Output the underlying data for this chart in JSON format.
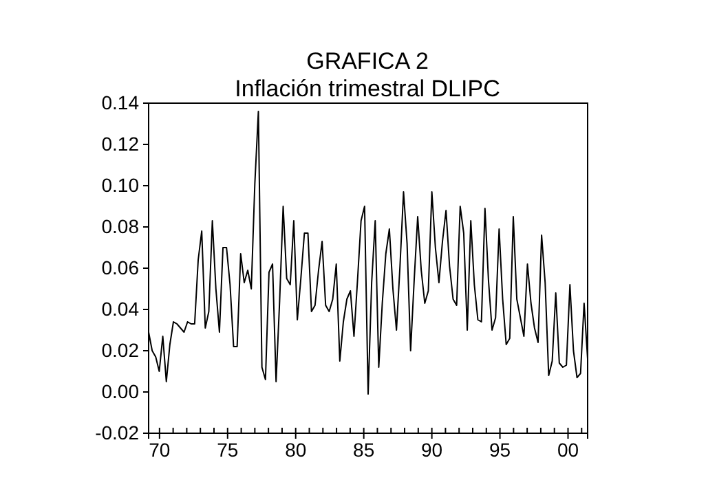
{
  "chart_data": {
    "type": "line",
    "title": "GRAFICA 2",
    "subtitle": "Inflación trimestral DLIPC",
    "x": [
      1969.2,
      1969.46,
      1969.72,
      1969.98,
      1970.24,
      1970.5,
      1970.76,
      1971.02,
      1971.28,
      1971.54,
      1971.8,
      1972.06,
      1972.32,
      1972.58,
      1972.84,
      1973.1,
      1973.36,
      1973.62,
      1973.88,
      1974.14,
      1974.4,
      1974.66,
      1974.92,
      1975.18,
      1975.44,
      1975.7,
      1975.96,
      1976.22,
      1976.48,
      1976.74,
      1977.0,
      1977.26,
      1977.52,
      1977.78,
      1978.04,
      1978.3,
      1978.56,
      1978.82,
      1979.08,
      1979.34,
      1979.6,
      1979.86,
      1980.12,
      1980.38,
      1980.64,
      1980.9,
      1981.16,
      1981.42,
      1981.68,
      1981.94,
      1982.2,
      1982.46,
      1982.72,
      1982.98,
      1983.24,
      1983.5,
      1983.76,
      1984.02,
      1984.28,
      1984.54,
      1984.8,
      1985.06,
      1985.32,
      1985.58,
      1985.84,
      1986.1,
      1986.36,
      1986.62,
      1986.88,
      1987.14,
      1987.4,
      1987.66,
      1987.92,
      1988.18,
      1988.44,
      1988.7,
      1988.96,
      1989.22,
      1989.48,
      1989.74,
      1990.0,
      1990.26,
      1990.52,
      1990.78,
      1991.04,
      1991.3,
      1991.56,
      1991.82,
      1992.08,
      1992.34,
      1992.6,
      1992.86,
      1993.12,
      1993.38,
      1993.64,
      1993.9,
      1994.16,
      1994.42,
      1994.68,
      1994.94,
      1995.2,
      1995.46,
      1995.72,
      1995.98,
      1996.24,
      1996.5,
      1996.76,
      1997.02,
      1997.28,
      1997.54,
      1997.8,
      1998.06,
      1998.32,
      1998.58,
      1998.84,
      1999.1,
      1999.36,
      1999.62,
      1999.88,
      2000.14,
      2000.4,
      2000.66,
      2000.92,
      2001.18,
      2001.44
    ],
    "series": [
      {
        "color": "#000000",
        "values": [
          0.029,
          0.02,
          0.017,
          0.01,
          0.027,
          0.005,
          0.023,
          0.034,
          0.033,
          0.031,
          0.029,
          0.034,
          0.033,
          0.033,
          0.064,
          0.078,
          0.031,
          0.039,
          0.083,
          0.05,
          0.029,
          0.07,
          0.07,
          0.052,
          0.022,
          0.022,
          0.067,
          0.053,
          0.059,
          0.05,
          0.101,
          0.136,
          0.012,
          0.006,
          0.058,
          0.062,
          0.005,
          0.044,
          0.09,
          0.055,
          0.052,
          0.083,
          0.035,
          0.055,
          0.077,
          0.077,
          0.039,
          0.042,
          0.059,
          0.073,
          0.042,
          0.039,
          0.045,
          0.062,
          0.015,
          0.034,
          0.045,
          0.049,
          0.027,
          0.054,
          0.083,
          0.09,
          -0.001,
          0.053,
          0.083,
          0.012,
          0.043,
          0.067,
          0.079,
          0.05,
          0.03,
          0.061,
          0.097,
          0.072,
          0.02,
          0.054,
          0.085,
          0.059,
          0.043,
          0.049,
          0.097,
          0.07,
          0.053,
          0.073,
          0.088,
          0.061,
          0.045,
          0.042,
          0.09,
          0.077,
          0.03,
          0.083,
          0.052,
          0.035,
          0.034,
          0.089,
          0.054,
          0.03,
          0.036,
          0.079,
          0.045,
          0.023,
          0.026,
          0.085,
          0.045,
          0.036,
          0.027,
          0.062,
          0.043,
          0.031,
          0.024,
          0.076,
          0.053,
          0.008,
          0.015,
          0.048,
          0.014,
          0.012,
          0.013,
          0.052,
          0.02,
          0.007,
          0.009,
          0.043,
          0.016
        ]
      }
    ],
    "xlim": [
      1969.2,
      2001.44
    ],
    "xticks": [
      {
        "value": 1970,
        "label": "70"
      },
      {
        "value": 1971,
        "label": null
      },
      {
        "value": 1972,
        "label": null
      },
      {
        "value": 1973,
        "label": null
      },
      {
        "value": 1974,
        "label": null
      },
      {
        "value": 1975,
        "label": "75"
      },
      {
        "value": 1976,
        "label": null
      },
      {
        "value": 1977,
        "label": null
      },
      {
        "value": 1978,
        "label": null
      },
      {
        "value": 1979,
        "label": null
      },
      {
        "value": 1980,
        "label": "80"
      },
      {
        "value": 1981,
        "label": null
      },
      {
        "value": 1982,
        "label": null
      },
      {
        "value": 1983,
        "label": null
      },
      {
        "value": 1984,
        "label": null
      },
      {
        "value": 1985,
        "label": "85"
      },
      {
        "value": 1986,
        "label": null
      },
      {
        "value": 1987,
        "label": null
      },
      {
        "value": 1988,
        "label": null
      },
      {
        "value": 1989,
        "label": null
      },
      {
        "value": 1990,
        "label": "90"
      },
      {
        "value": 1991,
        "label": null
      },
      {
        "value": 1992,
        "label": null
      },
      {
        "value": 1993,
        "label": null
      },
      {
        "value": 1994,
        "label": null
      },
      {
        "value": 1995,
        "label": "95"
      },
      {
        "value": 1996,
        "label": null
      },
      {
        "value": 1997,
        "label": null
      },
      {
        "value": 1998,
        "label": null
      },
      {
        "value": 1999,
        "label": null
      },
      {
        "value": 2000,
        "label": "00"
      },
      {
        "value": 2001,
        "label": null
      }
    ],
    "ylim": [
      -0.02,
      0.14
    ],
    "yticks": [
      {
        "value": -0.02,
        "label": "-0.02"
      },
      {
        "value": 0,
        "label": "0.00"
      },
      {
        "value": 0.02,
        "label": "0.02"
      },
      {
        "value": 0.04,
        "label": "0.04"
      },
      {
        "value": 0.06,
        "label": "0.06"
      },
      {
        "value": 0.08,
        "label": "0.08"
      },
      {
        "value": 0.1,
        "label": "0.10"
      },
      {
        "value": 0.12,
        "label": "0.12"
      },
      {
        "value": 0.14,
        "label": "0.14"
      }
    ],
    "grid": false
  }
}
